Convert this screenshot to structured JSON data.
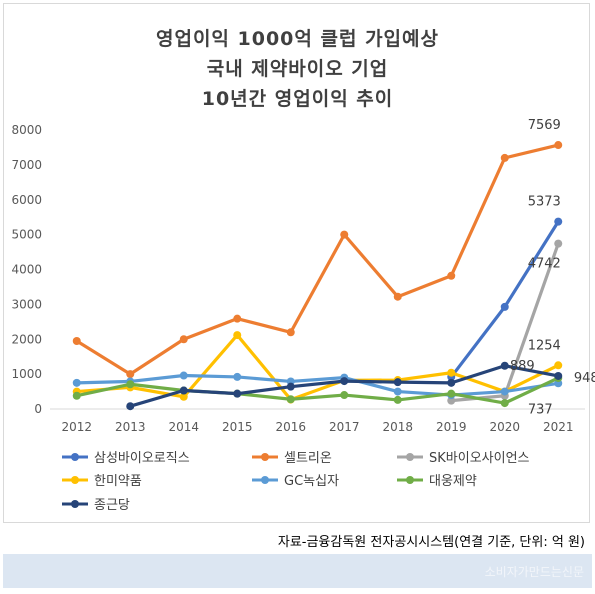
{
  "chart_data": {
    "type": "line",
    "title_lines": [
      "영업이익 1000억 클럽 가입예상",
      "국내 제약바이오 기업",
      "10년간 영업이익 추이"
    ],
    "categories": [
      "2012",
      "2013",
      "2014",
      "2015",
      "2016",
      "2017",
      "2018",
      "2019",
      "2020",
      "2021"
    ],
    "ylim": [
      0,
      8000
    ],
    "yticks": [
      0,
      1000,
      2000,
      3000,
      4000,
      5000,
      6000,
      7000,
      8000
    ],
    "grid": false,
    "legend_position": "bottom",
    "series": [
      {
        "name": "삼성바이오로직스",
        "color": "#4472c4",
        "values": [
          null,
          null,
          null,
          null,
          null,
          null,
          null,
          920,
          2928,
          5373
        ]
      },
      {
        "name": "셀트리온",
        "color": "#ed7d31",
        "values": [
          1950,
          1000,
          2000,
          2590,
          2200,
          5000,
          3220,
          3820,
          7200,
          7569
        ]
      },
      {
        "name": "SK바이오사이언스",
        "color": "#a5a5a5",
        "values": [
          null,
          null,
          null,
          null,
          null,
          null,
          null,
          240,
          380,
          4742
        ]
      },
      {
        "name": "한미약품",
        "color": "#ffc000",
        "values": [
          500,
          620,
          350,
          2120,
          270,
          820,
          830,
          1040,
          500,
          1254
        ]
      },
      {
        "name": "GC녹십자",
        "color": "#5b9bd5",
        "values": [
          750,
          790,
          960,
          920,
          790,
          900,
          500,
          400,
          500,
          737
        ]
      },
      {
        "name": "대웅제약",
        "color": "#70ad47",
        "values": [
          380,
          710,
          530,
          440,
          280,
          400,
          260,
          440,
          170,
          889
        ]
      },
      {
        "name": "종근당",
        "color": "#264478",
        "values": [
          null,
          80,
          530,
          440,
          640,
          800,
          770,
          750,
          1240,
          948
        ]
      }
    ],
    "data_labels": [
      {
        "series": "셀트리온",
        "category": "2021",
        "text": "7569"
      },
      {
        "series": "삼성바이오로직스",
        "category": "2021",
        "text": "5373"
      },
      {
        "series": "SK바이오사이언스",
        "category": "2021",
        "text": "4742"
      },
      {
        "series": "한미약품",
        "category": "2021",
        "text": "1254"
      },
      {
        "series": "대웅제약",
        "category": "2021",
        "text": "889"
      },
      {
        "series": "종근당",
        "category": "2021",
        "text": "948"
      },
      {
        "series": "GC녹십자",
        "category": "2021",
        "text": "737"
      }
    ]
  },
  "source_text": "자료-금융감독원 전자공시시스템(연결 기준, 단위: 억 원)",
  "watermark": "소비자가만드는신문"
}
